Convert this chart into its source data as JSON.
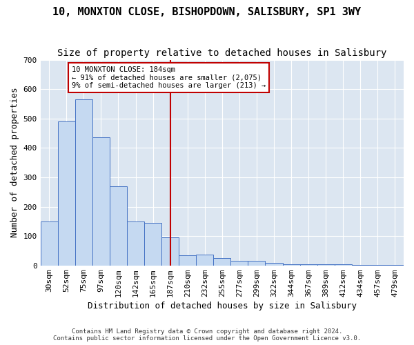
{
  "title_line1": "10, MONXTON CLOSE, BISHOPDOWN, SALISBURY, SP1 3WY",
  "title_line2": "Size of property relative to detached houses in Salisbury",
  "xlabel": "Distribution of detached houses by size in Salisbury",
  "ylabel": "Number of detached properties",
  "footer_line1": "Contains HM Land Registry data © Crown copyright and database right 2024.",
  "footer_line2": "Contains public sector information licensed under the Open Government Licence v3.0.",
  "bar_labels": [
    "30sqm",
    "52sqm",
    "75sqm",
    "97sqm",
    "120sqm",
    "142sqm",
    "165sqm",
    "187sqm",
    "210sqm",
    "232sqm",
    "255sqm",
    "277sqm",
    "299sqm",
    "322sqm",
    "344sqm",
    "367sqm",
    "389sqm",
    "412sqm",
    "434sqm",
    "457sqm",
    "479sqm"
  ],
  "bar_values": [
    150,
    490,
    565,
    435,
    270,
    150,
    145,
    95,
    35,
    38,
    25,
    15,
    15,
    8,
    5,
    5,
    3,
    3,
    2,
    1,
    1
  ],
  "bar_color": "#c5d9f1",
  "bar_edge_color": "#4472c4",
  "vline_x": 7,
  "vline_color": "#c00000",
  "annotation_text": "10 MONXTON CLOSE: 184sqm\n← 91% of detached houses are smaller (2,075)\n9% of semi-detached houses are larger (213) →",
  "annotation_box_color": "#ffffff",
  "annotation_box_edge": "#c00000",
  "ylim": [
    0,
    700
  ],
  "yticks": [
    0,
    100,
    200,
    300,
    400,
    500,
    600,
    700
  ],
  "plot_bg_color": "#dce6f1",
  "title_fontsize": 11,
  "subtitle_fontsize": 10,
  "axis_label_fontsize": 9,
  "tick_fontsize": 8
}
